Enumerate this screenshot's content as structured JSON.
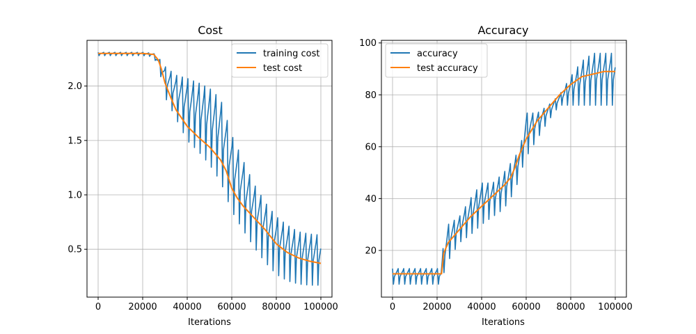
{
  "colors": {
    "blue": "#1f77b4",
    "orange": "#ff7f0e"
  },
  "chart_data": [
    {
      "type": "line",
      "title": "Cost",
      "xlabel": "Iterations",
      "ylabel": "",
      "xlim": [
        -5000,
        105000
      ],
      "ylim": [
        0.06,
        2.42
      ],
      "xticks": [
        0,
        20000,
        40000,
        60000,
        80000,
        100000
      ],
      "yticks": [
        0.5,
        1.0,
        1.5,
        2.0
      ],
      "ytick_labels": [
        "0.5",
        "1.0",
        "1.5",
        "2.0"
      ],
      "grid": true,
      "legend_position": "top-right",
      "series": [
        {
          "name": "training cost",
          "color": "#1f77b4",
          "style": "oscillating",
          "x": [
            0,
            20000,
            25000,
            28000,
            30000,
            35000,
            40000,
            45000,
            50000,
            55000,
            60000,
            65000,
            70000,
            75000,
            80000,
            85000,
            90000,
            95000,
            100000
          ],
          "upper": [
            2.31,
            2.31,
            2.3,
            2.24,
            2.18,
            2.1,
            2.07,
            2.03,
            1.98,
            1.88,
            1.55,
            1.32,
            1.1,
            0.93,
            0.8,
            0.72,
            0.66,
            0.64,
            0.63
          ],
          "lower": [
            2.28,
            2.28,
            2.27,
            2.1,
            1.9,
            1.7,
            1.5,
            1.4,
            1.28,
            1.12,
            0.85,
            0.68,
            0.52,
            0.38,
            0.27,
            0.21,
            0.18,
            0.17,
            0.17
          ]
        },
        {
          "name": "test cost",
          "color": "#ff7f0e",
          "x": [
            0,
            10000,
            20000,
            25000,
            27000,
            28500,
            30000,
            32500,
            35000,
            40000,
            45000,
            50000,
            55000,
            57500,
            60000,
            62500,
            65000,
            70000,
            75000,
            80000,
            85000,
            90000,
            95000,
            100000
          ],
          "y": [
            2.3,
            2.3,
            2.3,
            2.29,
            2.24,
            2.15,
            2.03,
            1.9,
            1.78,
            1.63,
            1.53,
            1.44,
            1.32,
            1.22,
            1.06,
            0.97,
            0.9,
            0.79,
            0.68,
            0.55,
            0.47,
            0.42,
            0.39,
            0.37
          ]
        }
      ]
    },
    {
      "type": "line",
      "title": "Accuracy",
      "xlabel": "Iterations",
      "ylabel": "",
      "xlim": [
        -5000,
        105000
      ],
      "ylim": [
        2,
        101
      ],
      "xticks": [
        0,
        20000,
        40000,
        60000,
        80000,
        100000
      ],
      "yticks": [
        20,
        40,
        60,
        80,
        100
      ],
      "ytick_labels": [
        "20",
        "40",
        "60",
        "80",
        "100"
      ],
      "grid": true,
      "legend_position": "top-left",
      "series": [
        {
          "name": "accuracy",
          "color": "#1f77b4",
          "style": "oscillating",
          "x": [
            0,
            20000,
            22000,
            22500,
            25000,
            30000,
            35000,
            40000,
            45000,
            50000,
            55000,
            57500,
            60000,
            65000,
            70000,
            75000,
            80000,
            85000,
            90000,
            95000,
            100000
          ],
          "upper": [
            13,
            13,
            13,
            20,
            30,
            33,
            40,
            46,
            46,
            50,
            56,
            60,
            73,
            73,
            76,
            80,
            87,
            93,
            96,
            96,
            96
          ],
          "lower": [
            7,
            7,
            7,
            10,
            16,
            23,
            26,
            30,
            33,
            36,
            43,
            50,
            56,
            63,
            70,
            76,
            76,
            76,
            76,
            76,
            76
          ]
        },
        {
          "name": "test accuracy",
          "color": "#ff7f0e",
          "x": [
            0,
            10000,
            20000,
            22000,
            22500,
            23000,
            25000,
            30000,
            35000,
            40000,
            45000,
            50000,
            53000,
            55000,
            57000,
            60000,
            65000,
            70000,
            75000,
            80000,
            85000,
            90000,
            95000,
            100000
          ],
          "y": [
            11,
            11,
            11,
            11,
            15,
            19,
            23,
            28,
            33,
            37,
            41,
            45,
            48,
            52,
            57,
            63,
            70,
            75,
            80,
            84,
            87,
            88,
            89,
            89
          ]
        }
      ]
    }
  ]
}
